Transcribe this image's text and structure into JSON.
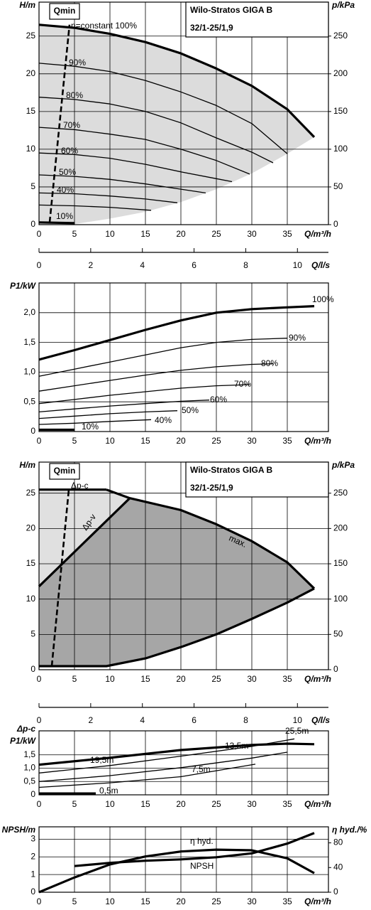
{
  "chart_data": [
    {
      "type": "line",
      "title": "Wilo-Stratos GIGA B",
      "subtitle": "32/1-25/1,9",
      "annotation": "Qmin",
      "ylabel": "H/m",
      "y2label": "p/kPa",
      "xlabel": "Q/m³/h",
      "x2label": "Q/l/s",
      "xlim": [
        0,
        40.8
      ],
      "ylim": [
        0,
        29.5
      ],
      "y2lim": [
        0,
        295
      ],
      "x2lim": [
        0,
        11.2
      ],
      "xticks": [
        0,
        5,
        10,
        15,
        20,
        25,
        30,
        35
      ],
      "yticks": [
        0,
        5,
        10,
        15,
        20,
        25
      ],
      "y2ticks": [
        0,
        50,
        100,
        150,
        200,
        250
      ],
      "x2ticks": [
        0,
        2,
        4,
        6,
        8,
        10
      ],
      "grid": true,
      "line_color": "#000000",
      "shading": [
        "#dcdcdc"
      ],
      "series": [
        {
          "name": "n=constant 100%",
          "style": "bold",
          "x": [
            0,
            5,
            10,
            15,
            20,
            25,
            30,
            35,
            38.8
          ],
          "values": [
            26.5,
            26.1,
            25.3,
            24.2,
            22.7,
            20.7,
            18.4,
            15.3,
            11.6
          ]
        },
        {
          "name": "90%",
          "style": "thin",
          "x": [
            0,
            5,
            10,
            15,
            20,
            25,
            30,
            35
          ],
          "values": [
            21.4,
            21.0,
            20.3,
            19.1,
            17.6,
            15.8,
            13.4,
            9.4
          ]
        },
        {
          "name": "80%",
          "style": "thin",
          "x": [
            0,
            5,
            10,
            15,
            20,
            25,
            30,
            33
          ],
          "values": [
            16.9,
            16.6,
            16.0,
            15.0,
            13.5,
            11.5,
            9.6,
            8.2
          ]
        },
        {
          "name": "70%",
          "style": "thin",
          "x": [
            0,
            5,
            10,
            15,
            20,
            25,
            29.7
          ],
          "values": [
            12.9,
            12.6,
            12.0,
            11.3,
            10.0,
            8.5,
            6.7
          ]
        },
        {
          "name": "60%",
          "style": "thin",
          "x": [
            0,
            5,
            10,
            15,
            20,
            25,
            27.2
          ],
          "values": [
            9.5,
            9.3,
            8.8,
            8.0,
            7.0,
            6.1,
            5.7
          ]
        },
        {
          "name": "50%",
          "style": "thin",
          "x": [
            0,
            5,
            10,
            15,
            20,
            23.5
          ],
          "values": [
            6.6,
            6.4,
            6.0,
            5.4,
            4.7,
            4.2
          ]
        },
        {
          "name": "40%",
          "style": "thin",
          "x": [
            0,
            5,
            10,
            15,
            19.5
          ],
          "values": [
            4.2,
            4.1,
            3.8,
            3.4,
            2.9
          ]
        },
        {
          "style": "thin",
          "x": [
            0,
            5,
            10,
            15.8
          ],
          "values": [
            2.6,
            2.5,
            2.3,
            1.9
          ]
        },
        {
          "name": "10%",
          "style": "bold",
          "x": [
            0,
            5
          ],
          "values": [
            0.3,
            0.2
          ]
        },
        {
          "style": "edge",
          "x": [
            0,
            4.5,
            10,
            15,
            20,
            25,
            30,
            35,
            38.8
          ],
          "values": [
            0,
            0,
            0.8,
            1.7,
            3.0,
            4.7,
            6.8,
            9.4,
            11.6
          ]
        },
        {
          "style": "dashed",
          "x": [
            1.5,
            4.3
          ],
          "values": [
            0.3,
            26.5
          ]
        }
      ]
    },
    {
      "type": "line",
      "ylabel": "P1/kW",
      "xlabel": "Q/m³/h",
      "xlim": [
        0,
        40.8
      ],
      "ylim": [
        0,
        2.5
      ],
      "xticks": [
        0,
        5,
        10,
        15,
        20,
        25,
        30,
        35
      ],
      "yticks": [
        0,
        {
          "value": 0.5,
          "label": "0,5"
        },
        {
          "value": 1.0,
          "label": "1,0"
        },
        {
          "value": 1.5,
          "label": "1,5"
        },
        {
          "value": 2.0,
          "label": "2,0"
        }
      ],
      "grid": true,
      "line_color": "#000000",
      "series": [
        {
          "name": "100%",
          "style": "bold",
          "x": [
            0,
            5,
            10,
            15,
            20,
            25,
            30,
            35,
            38.8
          ],
          "values": [
            1.21,
            1.37,
            1.54,
            1.71,
            1.87,
            2.0,
            2.06,
            2.09,
            2.11
          ]
        },
        {
          "name": "90%",
          "style": "thin",
          "x": [
            0,
            5,
            10,
            15,
            20,
            25,
            30,
            35
          ],
          "values": [
            0.93,
            1.05,
            1.17,
            1.29,
            1.41,
            1.5,
            1.55,
            1.57
          ]
        },
        {
          "name": "80%",
          "style": "thin",
          "x": [
            0,
            5,
            10,
            15,
            20,
            25,
            30,
            33
          ],
          "values": [
            0.68,
            0.77,
            0.86,
            0.95,
            1.03,
            1.09,
            1.13,
            1.14
          ]
        },
        {
          "name": "70%",
          "style": "thin",
          "x": [
            0,
            5,
            10,
            15,
            20,
            25,
            29.7
          ],
          "values": [
            0.47,
            0.54,
            0.61,
            0.67,
            0.73,
            0.77,
            0.79
          ]
        },
        {
          "name": "60%",
          "style": "thin",
          "x": [
            0,
            5,
            10,
            15,
            20,
            24
          ],
          "values": [
            0.33,
            0.38,
            0.43,
            0.47,
            0.51,
            0.53
          ]
        },
        {
          "name": "50%",
          "style": "thin",
          "x": [
            0,
            5,
            10,
            15,
            19.5
          ],
          "values": [
            0.22,
            0.26,
            0.3,
            0.33,
            0.35
          ]
        },
        {
          "name": "40%",
          "style": "thin",
          "x": [
            0,
            5,
            10,
            15.8
          ],
          "values": [
            0.12,
            0.14,
            0.17,
            0.2
          ]
        },
        {
          "name": "10%",
          "style": "bold",
          "x": [
            0,
            5
          ],
          "values": [
            0.03,
            0.03
          ]
        }
      ]
    },
    {
      "type": "line",
      "title": "Wilo-Stratos GIGA B",
      "subtitle": "32/1-25/1,9",
      "annotation": "Qmin",
      "ylabel": "H/m",
      "y2label": "p/kPa",
      "xlabel": "Q/m³/h",
      "x2label": "Q/l/s",
      "xlim": [
        0,
        40.8
      ],
      "ylim": [
        0,
        29.4
      ],
      "y2lim": [
        0,
        294
      ],
      "x2lim": [
        0,
        11.2
      ],
      "xticks": [
        0,
        5,
        10,
        15,
        20,
        25,
        30,
        35
      ],
      "yticks": [
        0,
        5,
        10,
        15,
        20,
        25
      ],
      "y2ticks": [
        0,
        50,
        100,
        150,
        200,
        250
      ],
      "x2ticks": [
        0,
        2,
        4,
        6,
        8,
        10
      ],
      "grid": true,
      "line_color": "#000000",
      "shading": [
        "#e0e0e0",
        "#a6a6a6"
      ],
      "series": [
        {
          "name": "Δp-c",
          "style": "bold",
          "x": [
            0,
            9.5
          ],
          "values": [
            25.5,
            25.5
          ]
        },
        {
          "name": "max.",
          "style": "bold",
          "x": [
            9.5,
            12.8,
            20,
            25,
            30,
            35,
            38.8
          ],
          "values": [
            25.5,
            24.3,
            22.6,
            20.6,
            18.2,
            15.2,
            11.5
          ]
        },
        {
          "name": "Δp-v",
          "style": "bold",
          "x": [
            0,
            12.8
          ],
          "values": [
            11.8,
            24.3
          ]
        },
        {
          "style": "bold",
          "x": [
            0,
            9.5,
            15,
            20,
            25,
            30,
            35,
            38.8
          ],
          "values": [
            0.5,
            0.5,
            1.6,
            3.2,
            5.0,
            7.2,
            9.5,
            11.5
          ]
        },
        {
          "style": "dashed",
          "x": [
            1.8,
            4.2
          ],
          "values": [
            0.5,
            25.5
          ]
        }
      ]
    },
    {
      "type": "line",
      "ylabel": [
        "Δp-c",
        "P1/kW"
      ],
      "xlabel": "Q/m³/h",
      "xlim": [
        0,
        40.8
      ],
      "ylim": [
        0,
        2.4
      ],
      "xticks": [
        0,
        5,
        10,
        15,
        20,
        25,
        30,
        35
      ],
      "yticks": [
        0,
        {
          "value": 0.5,
          "label": "0,5"
        },
        {
          "value": 1.0,
          "label": "1,0"
        },
        {
          "value": 1.5,
          "label": "1,5"
        }
      ],
      "grid": true,
      "line_color": "#000000",
      "series": [
        {
          "name": "25,5m",
          "style": "bold",
          "x": [
            0,
            10,
            20,
            30,
            35,
            38.8
          ],
          "values": [
            1.13,
            1.39,
            1.68,
            1.87,
            1.92,
            1.9
          ]
        },
        {
          "name": "19,5m",
          "style": "thin",
          "x": [
            0,
            10,
            20,
            30,
            36
          ],
          "values": [
            0.82,
            1.1,
            1.45,
            1.82,
            2.1
          ]
        },
        {
          "name": "13,5m",
          "style": "thin",
          "x": [
            0,
            10,
            20,
            30,
            35
          ],
          "values": [
            0.5,
            0.72,
            1.02,
            1.38,
            1.6
          ]
        },
        {
          "name": "7,5m",
          "style": "thin",
          "x": [
            0,
            10,
            20,
            30.5
          ],
          "values": [
            0.28,
            0.45,
            0.68,
            1.15
          ]
        },
        {
          "name": "0,5m",
          "style": "bold",
          "x": [
            0,
            8
          ],
          "values": [
            0.05,
            0.05
          ]
        }
      ]
    },
    {
      "type": "line",
      "ylabel": "NPSH/m",
      "y2label": "η hyd./%",
      "xlabel": "Q/m³/h",
      "xlim": [
        0,
        40.8
      ],
      "ylim": [
        0,
        3.7
      ],
      "y2lim": [
        0,
        106
      ],
      "xticks": [
        0,
        5,
        10,
        15,
        20,
        25,
        30,
        35
      ],
      "yticks": [
        0,
        1,
        2,
        3
      ],
      "y2ticks": [
        0,
        40,
        80
      ],
      "grid": true,
      "line_color": "#000000",
      "series": [
        {
          "name": "η hyd.",
          "style": "bold",
          "axis": "y2",
          "x": [
            0,
            5,
            10,
            15,
            20,
            25,
            30,
            35,
            38.8
          ],
          "values": [
            0,
            24,
            45,
            58,
            66,
            69,
            68,
            55,
            31
          ]
        },
        {
          "name": "NPSH",
          "style": "bold",
          "x": [
            5,
            10,
            15,
            20,
            25,
            30,
            35,
            38.8
          ],
          "values": [
            1.48,
            1.66,
            1.78,
            1.86,
            1.98,
            2.2,
            2.75,
            3.35
          ]
        }
      ]
    }
  ]
}
